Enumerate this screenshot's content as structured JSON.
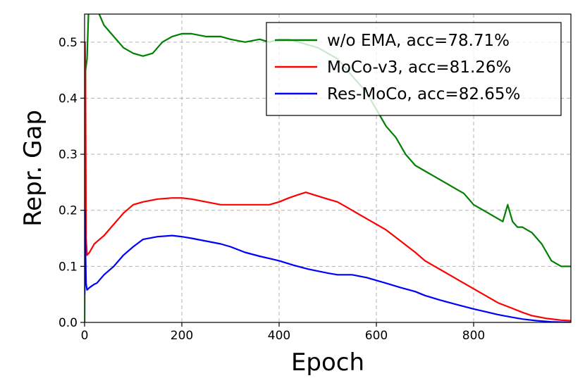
{
  "chart_data": {
    "type": "line",
    "xlabel": "Epoch",
    "ylabel": "Repr. Gap",
    "xlim": [
      0,
      1000
    ],
    "ylim": [
      0.0,
      0.55
    ],
    "xticks": [
      0,
      200,
      400,
      600,
      800
    ],
    "yticks": [
      0.0,
      0.1,
      0.2,
      0.3,
      0.4,
      0.5
    ],
    "xtick_labels": [
      "0",
      "200",
      "400",
      "600",
      "800"
    ],
    "ytick_labels": [
      "0.0",
      "0.1",
      "0.2",
      "0.3",
      "0.4",
      "0.5"
    ],
    "grid": true,
    "legend_position": "top-right",
    "series": [
      {
        "name": "w/o EMA, acc=78.71%",
        "color": "#008000",
        "x": [
          0,
          2,
          5,
          8,
          12,
          20,
          30,
          40,
          60,
          80,
          100,
          120,
          140,
          160,
          180,
          200,
          220,
          250,
          280,
          300,
          330,
          360,
          380,
          400,
          420,
          440,
          460,
          480,
          500,
          520,
          540,
          560,
          580,
          600,
          620,
          640,
          660,
          680,
          700,
          720,
          740,
          760,
          780,
          800,
          820,
          840,
          860,
          870,
          880,
          890,
          900,
          920,
          940,
          960,
          980,
          1000
        ],
        "y": [
          0.0,
          0.45,
          0.47,
          0.55,
          0.56,
          0.56,
          0.55,
          0.53,
          0.51,
          0.49,
          0.48,
          0.475,
          0.48,
          0.5,
          0.51,
          0.515,
          0.515,
          0.51,
          0.51,
          0.505,
          0.5,
          0.505,
          0.5,
          0.505,
          0.505,
          0.5,
          0.495,
          0.49,
          0.48,
          0.47,
          0.45,
          0.43,
          0.41,
          0.38,
          0.35,
          0.33,
          0.3,
          0.28,
          0.27,
          0.26,
          0.25,
          0.24,
          0.23,
          0.21,
          0.2,
          0.19,
          0.18,
          0.21,
          0.18,
          0.17,
          0.17,
          0.16,
          0.14,
          0.11,
          0.1,
          0.1
        ]
      },
      {
        "name": "MoCo-v3, acc=81.26%",
        "color": "#ff0000",
        "x": [
          0,
          1,
          2,
          3,
          5,
          10,
          20,
          40,
          60,
          80,
          100,
          120,
          150,
          180,
          200,
          220,
          250,
          280,
          300,
          330,
          360,
          380,
          400,
          420,
          440,
          455,
          470,
          500,
          520,
          550,
          580,
          600,
          620,
          650,
          680,
          700,
          720,
          750,
          780,
          800,
          820,
          850,
          880,
          900,
          920,
          950,
          980,
          1000
        ],
        "y": [
          0.05,
          0.5,
          0.4,
          0.15,
          0.12,
          0.125,
          0.14,
          0.155,
          0.175,
          0.195,
          0.21,
          0.215,
          0.22,
          0.222,
          0.222,
          0.22,
          0.215,
          0.21,
          0.21,
          0.21,
          0.21,
          0.21,
          0.215,
          0.222,
          0.228,
          0.232,
          0.228,
          0.22,
          0.215,
          0.2,
          0.185,
          0.175,
          0.165,
          0.145,
          0.125,
          0.11,
          0.1,
          0.085,
          0.07,
          0.06,
          0.05,
          0.035,
          0.025,
          0.018,
          0.012,
          0.007,
          0.004,
          0.003
        ]
      },
      {
        "name": "Res-MoCo, acc=82.65%",
        "color": "#0000ff",
        "x": [
          0,
          1,
          2,
          3,
          5,
          10,
          15,
          20,
          25,
          30,
          40,
          60,
          80,
          100,
          120,
          150,
          180,
          200,
          220,
          250,
          280,
          300,
          330,
          360,
          400,
          430,
          460,
          500,
          520,
          550,
          580,
          600,
          620,
          650,
          680,
          700,
          730,
          760,
          800,
          820,
          850,
          880,
          900,
          930,
          960,
          1000
        ],
        "y": [
          0.05,
          0.2,
          0.12,
          0.07,
          0.058,
          0.062,
          0.065,
          0.068,
          0.07,
          0.075,
          0.085,
          0.1,
          0.12,
          0.135,
          0.148,
          0.153,
          0.155,
          0.153,
          0.15,
          0.145,
          0.14,
          0.135,
          0.125,
          0.118,
          0.11,
          0.102,
          0.095,
          0.088,
          0.085,
          0.085,
          0.08,
          0.075,
          0.07,
          0.062,
          0.055,
          0.048,
          0.04,
          0.033,
          0.024,
          0.02,
          0.014,
          0.009,
          0.006,
          0.003,
          0.001,
          0.0
        ]
      }
    ]
  }
}
